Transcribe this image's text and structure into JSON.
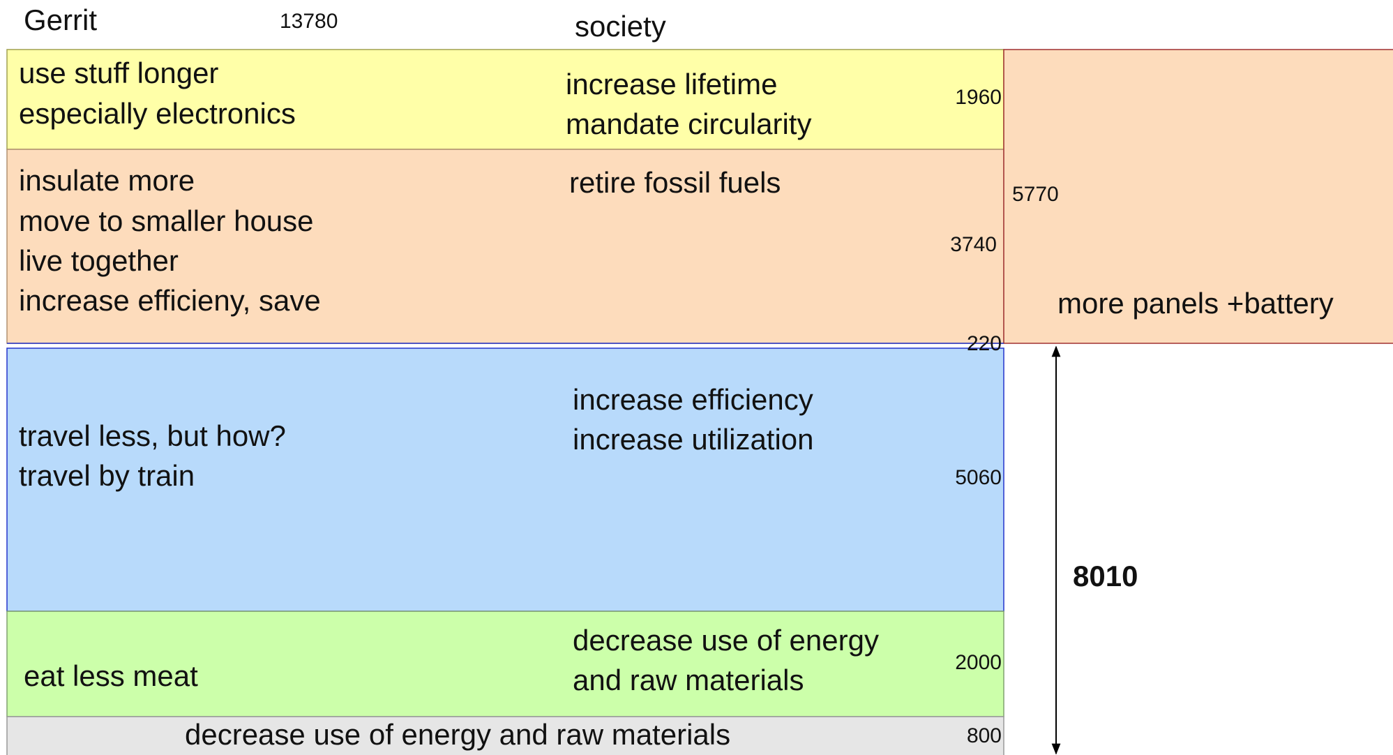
{
  "header": {
    "name": "Gerrit",
    "total": 13780,
    "column": "society"
  },
  "blocks": [
    {
      "left": [
        "use stuff longer",
        "especially electronics"
      ],
      "society": [
        "increase lifetime",
        "mandate circularity"
      ],
      "value": 1960
    },
    {
      "left": [
        "insulate more",
        "move to smaller house",
        "live together",
        "increase efficieny, save"
      ],
      "society": [
        "retire fossil fuels"
      ],
      "value": 3740
    },
    {
      "left": [
        "travel less, but how?",
        "travel by train"
      ],
      "society": [
        "increase efficiency",
        "increase utilization"
      ],
      "value": 5060
    },
    {
      "left": [
        "eat less meat"
      ],
      "society": [
        "decrease use of energy",
        "and raw materials"
      ],
      "value": 2000
    },
    {
      "left": [
        "decrease use of energy and raw materials"
      ],
      "value": 800
    }
  ],
  "boundary": 220,
  "side": {
    "value": 5770,
    "label": "more panels +battery"
  },
  "span": 8010
}
